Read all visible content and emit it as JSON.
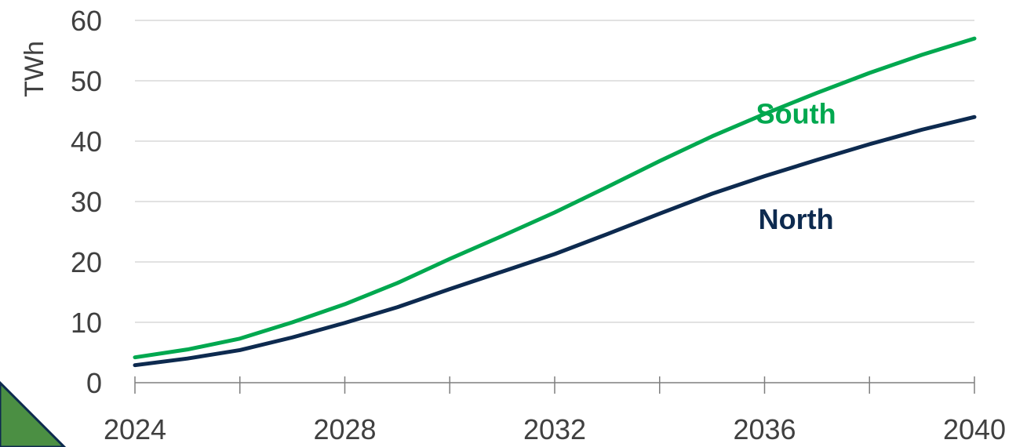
{
  "chart_data": {
    "type": "line",
    "title": "",
    "xlabel": "",
    "ylabel": "TWh",
    "x": [
      2024,
      2025,
      2026,
      2027,
      2028,
      2029,
      2030,
      2031,
      2032,
      2033,
      2034,
      2035,
      2036,
      2037,
      2038,
      2039,
      2040
    ],
    "xticks": [
      "2024",
      "2028",
      "2032",
      "2036",
      "2040"
    ],
    "yticks": [
      "0",
      "10",
      "20",
      "30",
      "40",
      "50",
      "60"
    ],
    "xlim": [
      2024,
      2040
    ],
    "ylim": [
      0,
      60
    ],
    "grid": "horizontal",
    "legend": "none",
    "series": [
      {
        "name": "South",
        "color": "#00a84f",
        "values": [
          4.2,
          5.5,
          7.3,
          10.0,
          13.0,
          16.5,
          20.5,
          24.3,
          28.2,
          32.4,
          36.7,
          40.8,
          44.5,
          48.0,
          51.3,
          54.3,
          57.0
        ]
      },
      {
        "name": "North",
        "color": "#0d2a4f",
        "values": [
          2.9,
          4.0,
          5.4,
          7.5,
          9.9,
          12.5,
          15.5,
          18.4,
          21.3,
          24.6,
          28.0,
          31.3,
          34.2,
          36.9,
          39.5,
          41.9,
          44.0
        ]
      }
    ]
  }
}
